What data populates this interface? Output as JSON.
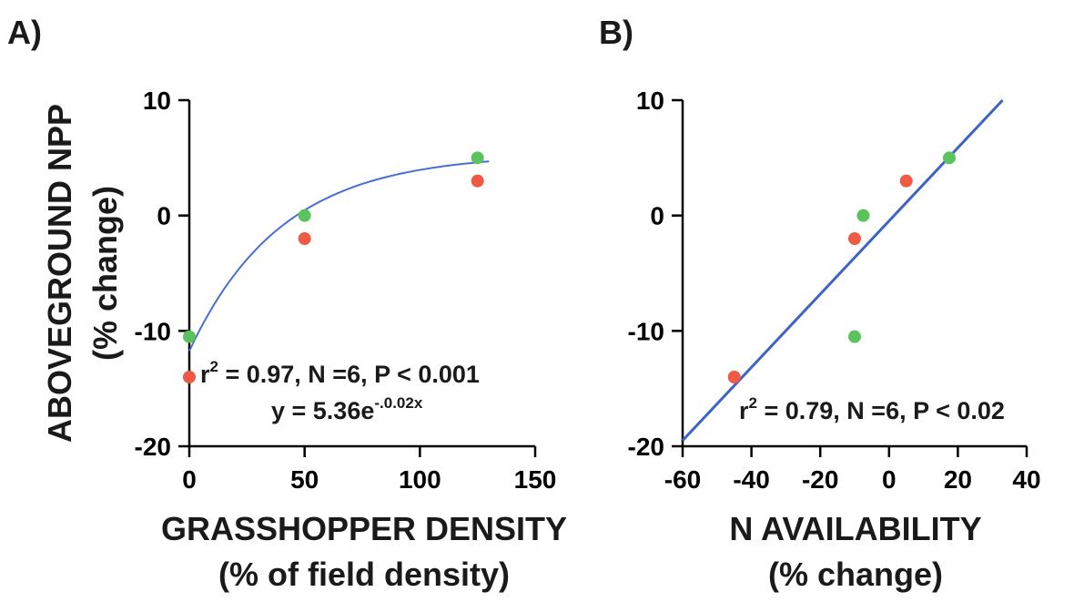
{
  "chart_data": [
    {
      "type": "scatter",
      "panel_label": "A)",
      "xlabel_line1": "GRASSHOPPER DENSITY",
      "xlabel_line2": "(% of field density)",
      "ylabel_line1": "ABOVEGROUND NPP",
      "ylabel_line2": "(% change)",
      "xlim": [
        0,
        150
      ],
      "ylim": [
        -20,
        10
      ],
      "xticks": [
        0,
        50,
        100,
        150
      ],
      "yticks": [
        10,
        0,
        -10,
        -20
      ],
      "series": [
        {
          "color": "#5cc35c",
          "x": [
            0,
            50,
            125
          ],
          "y": [
            -10.5,
            0,
            5
          ]
        },
        {
          "color": "#ee5a44",
          "x": [
            0,
            50,
            125
          ],
          "y": [
            -14,
            -2,
            3
          ]
        }
      ],
      "fit": {
        "kind": "exponential",
        "x_range": [
          0,
          130
        ]
      },
      "annotation_stats": "r = 0.97, N =6, P < 0.001",
      "annotation_equation": "y = 5.36e",
      "annotation_exponent": "-.0.02x",
      "stats_superscript": "2"
    },
    {
      "type": "scatter",
      "panel_label": "B)",
      "xlabel_line1": "N AVAILABILITY",
      "xlabel_line2": "(% change)",
      "xlim": [
        -60,
        40
      ],
      "ylim": [
        -20,
        10
      ],
      "xticks": [
        -60,
        -40,
        -20,
        0,
        20,
        40
      ],
      "yticks": [
        10,
        0,
        -10,
        -20
      ],
      "series": [
        {
          "color": "#5cc35c",
          "x": [
            -7.5,
            -10,
            17.5
          ],
          "y": [
            0,
            -10.5,
            5
          ]
        },
        {
          "color": "#ee5a44",
          "x": [
            -45,
            -10,
            5
          ],
          "y": [
            -14,
            -2,
            3
          ]
        }
      ],
      "fit": {
        "kind": "linear",
        "points": [
          [
            -60,
            -19.5
          ],
          [
            33,
            10
          ]
        ]
      },
      "annotation_stats": "r = 0.79, N =6, P < 0.02",
      "stats_superscript": "2"
    }
  ]
}
